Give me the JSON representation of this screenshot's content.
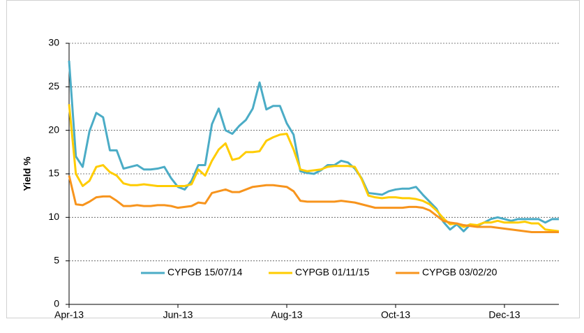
{
  "chart_data": {
    "type": "line",
    "ylabel": "Yield %",
    "categories": [
      "Apr-13",
      null,
      null,
      null,
      null,
      null,
      null,
      null,
      null,
      null,
      null,
      null,
      null,
      null,
      null,
      null,
      "Jun-13",
      null,
      null,
      null,
      null,
      null,
      null,
      null,
      null,
      null,
      null,
      null,
      null,
      null,
      null,
      null,
      "Aug-13",
      null,
      null,
      null,
      null,
      null,
      null,
      null,
      null,
      null,
      null,
      null,
      null,
      null,
      null,
      null,
      "Oct-13",
      null,
      null,
      null,
      null,
      null,
      null,
      null,
      null,
      null,
      null,
      null,
      null,
      null,
      null,
      null,
      "Dec-13",
      null,
      null,
      null,
      null,
      null,
      null,
      null,
      null
    ],
    "series": [
      {
        "name": "CYPGB 15/07/14",
        "color": "#4bacc6",
        "values": [
          28,
          17,
          15.8,
          19.9,
          22,
          21.5,
          17.7,
          17.7,
          15.6,
          15.8,
          16,
          15.5,
          15.5,
          15.6,
          15.8,
          14.5,
          13.5,
          13.2,
          14.2,
          16,
          16,
          20.7,
          22.5,
          20,
          19.6,
          20.5,
          21.2,
          22.5,
          25.5,
          22.4,
          22.8,
          22.8,
          20.8,
          19.5,
          15.3,
          15.1,
          15,
          15.4,
          16,
          16,
          16.5,
          16.3,
          15.6,
          14.5,
          12.8,
          12.7,
          12.6,
          13,
          13.2,
          13.3,
          13.3,
          13.5,
          12.6,
          11.8,
          11,
          9.5,
          8.6,
          9.2,
          8.4,
          9.2,
          9,
          9.4,
          9.8,
          10,
          9.8,
          9.6,
          9.8,
          9.8,
          9.8,
          9.8,
          9.4,
          9.8,
          9.8
        ]
      },
      {
        "name": "CYPGB 01/11/15",
        "color": "#ffcc00",
        "values": [
          23,
          15,
          13.6,
          14.2,
          15.8,
          16,
          15.2,
          14.8,
          13.9,
          13.7,
          13.7,
          13.8,
          13.7,
          13.6,
          13.6,
          13.6,
          13.6,
          13.6,
          13.8,
          15.5,
          14.8,
          16.5,
          17.8,
          18.5,
          16.6,
          16.8,
          17.5,
          17.5,
          17.6,
          18.8,
          19.2,
          19.5,
          19.6,
          17.8,
          15.5,
          15.3,
          15.4,
          15.5,
          15.8,
          15.9,
          15.9,
          15.9,
          15.8,
          14.4,
          12.5,
          12.3,
          12.2,
          12.3,
          12.3,
          12.2,
          12.2,
          12.1,
          11.9,
          11.5,
          10.8,
          9.9,
          9.2,
          9.3,
          8.9,
          9.2,
          9.1,
          9.4,
          9.4,
          9.6,
          9.4,
          9.4,
          9.4,
          9.5,
          9.3,
          9.3,
          8.6,
          8.5,
          8.4
        ]
      },
      {
        "name": "CYPGB 03/02/20",
        "color": "#f7941d",
        "values": [
          14.8,
          11.5,
          11.4,
          11.8,
          12.3,
          12.4,
          12.4,
          11.9,
          11.3,
          11.3,
          11.4,
          11.3,
          11.3,
          11.4,
          11.4,
          11.3,
          11.1,
          11.2,
          11.3,
          11.7,
          11.6,
          12.8,
          13,
          13.2,
          12.9,
          12.9,
          13.2,
          13.5,
          13.6,
          13.7,
          13.7,
          13.6,
          13.5,
          13,
          11.9,
          11.8,
          11.8,
          11.8,
          11.8,
          11.8,
          11.9,
          11.8,
          11.7,
          11.5,
          11.3,
          11.1,
          11.1,
          11.1,
          11.1,
          11.1,
          11.2,
          11.2,
          11.1,
          10.8,
          10.2,
          9.6,
          9.4,
          9.3,
          9.1,
          9,
          8.9,
          8.9,
          8.9,
          8.8,
          8.7,
          8.6,
          8.5,
          8.4,
          8.3,
          8.3,
          8.3,
          8.3,
          8.3
        ]
      }
    ],
    "ylim": [
      0,
      30
    ],
    "yticks": [
      0,
      5,
      10,
      15,
      20,
      25,
      30
    ],
    "grid": true,
    "legend": "bottom"
  }
}
